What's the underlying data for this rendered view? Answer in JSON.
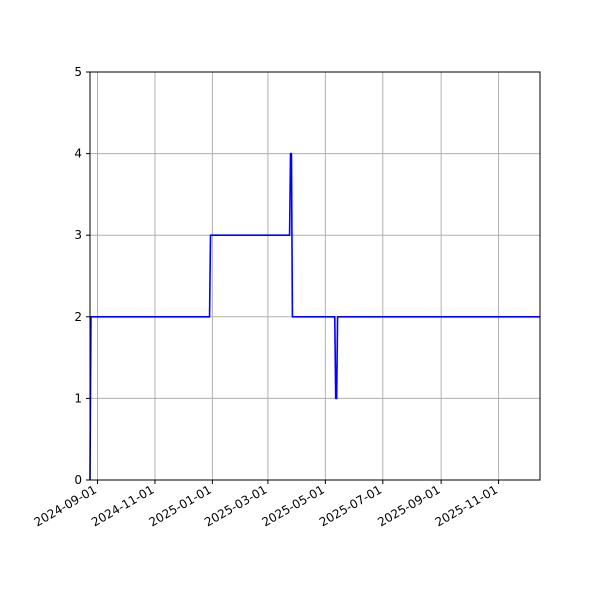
{
  "chart_data": {
    "type": "line",
    "title": "",
    "xlabel": "",
    "ylabel": "",
    "grid": true,
    "x_axis_type": "date",
    "xlim": [
      "2024-08-24",
      "2025-12-15"
    ],
    "ylim": [
      0,
      5
    ],
    "x_ticks": [
      "2024-09-01",
      "2024-11-01",
      "2025-01-01",
      "2025-03-01",
      "2025-05-01",
      "2025-07-01",
      "2025-09-01",
      "2025-11-01"
    ],
    "y_ticks": [
      0,
      1,
      2,
      3,
      4,
      5
    ],
    "series": [
      {
        "color": "#0000ff",
        "points": [
          {
            "x": "2024-08-24",
            "y": 0
          },
          {
            "x": "2024-08-25",
            "y": 2
          },
          {
            "x": "2024-12-29",
            "y": 2
          },
          {
            "x": "2024-12-30",
            "y": 3
          },
          {
            "x": "2025-03-24",
            "y": 3
          },
          {
            "x": "2025-03-25",
            "y": 4
          },
          {
            "x": "2025-03-26",
            "y": 4
          },
          {
            "x": "2025-03-27",
            "y": 2
          },
          {
            "x": "2025-05-11",
            "y": 2
          },
          {
            "x": "2025-05-12",
            "y": 1
          },
          {
            "x": "2025-05-13",
            "y": 1
          },
          {
            "x": "2025-05-14",
            "y": 2
          },
          {
            "x": "2025-12-15",
            "y": 2
          }
        ]
      }
    ]
  }
}
